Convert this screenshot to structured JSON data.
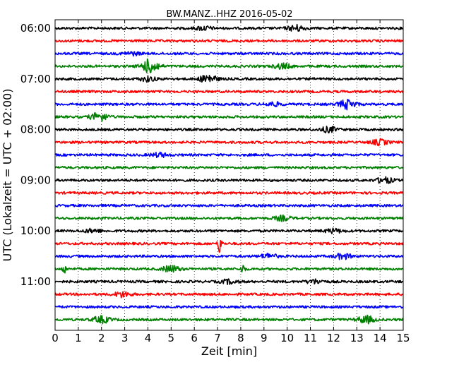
{
  "chart_data": {
    "type": "line",
    "title": "BW.MANZ..HHZ 2016-05-02",
    "xlabel": "Zeit  [min]",
    "ylabel": "UTC (Lokalzeit = UTC + 02:00)",
    "xlim": [
      0,
      15
    ],
    "x_ticks": [
      "0",
      "1",
      "2",
      "3",
      "4",
      "5",
      "6",
      "7",
      "8",
      "9",
      "10",
      "11",
      "12",
      "13",
      "14",
      "15"
    ],
    "y_tick_labels": [
      "06:00",
      "07:00",
      "08:00",
      "09:00",
      "10:00",
      "11:00"
    ],
    "grid": "vertical dotted",
    "trace_colors": [
      "#000000",
      "#ff0000",
      "#0000ff",
      "#008000"
    ],
    "traces": [
      {
        "start": "06:00",
        "color": "#000000",
        "events": [
          {
            "t": 6.4,
            "amp": 0.6
          },
          {
            "t": 10.4,
            "amp": 0.9
          }
        ]
      },
      {
        "start": "06:15",
        "color": "#ff0000",
        "events": []
      },
      {
        "start": "06:30",
        "color": "#0000ff",
        "events": [
          {
            "t": 3.3,
            "amp": 0.5
          }
        ]
      },
      {
        "start": "06:45",
        "color": "#008000",
        "events": [
          {
            "t": 4.1,
            "amp": 2.2
          },
          {
            "t": 9.8,
            "amp": 0.8
          }
        ]
      },
      {
        "start": "07:00",
        "color": "#000000",
        "events": [
          {
            "t": 4.0,
            "amp": 0.7
          },
          {
            "t": 6.6,
            "amp": 1.3
          }
        ]
      },
      {
        "start": "07:15",
        "color": "#ff0000",
        "events": []
      },
      {
        "start": "07:30",
        "color": "#0000ff",
        "events": [
          {
            "t": 9.4,
            "amp": 0.6
          },
          {
            "t": 12.6,
            "amp": 1.4
          }
        ]
      },
      {
        "start": "07:45",
        "color": "#008000",
        "events": [
          {
            "t": 1.9,
            "amp": 1.3
          }
        ]
      },
      {
        "start": "08:00",
        "color": "#000000",
        "events": [
          {
            "t": 11.8,
            "amp": 0.8
          }
        ]
      },
      {
        "start": "08:15",
        "color": "#ff0000",
        "events": [
          {
            "t": 14.0,
            "amp": 0.8
          }
        ]
      },
      {
        "start": "08:30",
        "color": "#0000ff",
        "events": [
          {
            "t": 4.5,
            "amp": 0.6
          }
        ]
      },
      {
        "start": "08:45",
        "color": "#008000",
        "events": []
      },
      {
        "start": "09:00",
        "color": "#000000",
        "events": [
          {
            "t": 14.2,
            "amp": 0.9
          }
        ]
      },
      {
        "start": "09:15",
        "color": "#ff0000",
        "events": []
      },
      {
        "start": "09:30",
        "color": "#0000ff",
        "events": []
      },
      {
        "start": "09:45",
        "color": "#008000",
        "events": [
          {
            "t": 9.8,
            "amp": 0.7
          }
        ]
      },
      {
        "start": "10:00",
        "color": "#000000",
        "events": [
          {
            "t": 1.6,
            "amp": 0.5
          },
          {
            "t": 12.0,
            "amp": 0.6
          }
        ]
      },
      {
        "start": "10:15",
        "color": "#ff0000",
        "events": [
          {
            "t": 7.1,
            "amp": 3.2,
            "spike": true
          }
        ]
      },
      {
        "start": "10:30",
        "color": "#0000ff",
        "events": [
          {
            "t": 9.2,
            "amp": 0.7
          },
          {
            "t": 12.4,
            "amp": 0.8
          }
        ]
      },
      {
        "start": "10:45",
        "color": "#008000",
        "events": [
          {
            "t": 0.4,
            "amp": 1.6,
            "spike": true
          },
          {
            "t": 5.0,
            "amp": 1.0
          },
          {
            "t": 8.1,
            "amp": 1.4,
            "spike": true
          }
        ]
      },
      {
        "start": "11:00",
        "color": "#000000",
        "events": [
          {
            "t": 7.5,
            "amp": 0.6
          },
          {
            "t": 11.2,
            "amp": 0.6
          }
        ]
      },
      {
        "start": "11:15",
        "color": "#ff0000",
        "events": [
          {
            "t": 2.9,
            "amp": 0.8
          }
        ]
      },
      {
        "start": "11:30",
        "color": "#0000ff",
        "events": []
      },
      {
        "start": "11:45",
        "color": "#008000",
        "events": [
          {
            "t": 2.0,
            "amp": 1.0
          },
          {
            "t": 13.4,
            "amp": 1.1
          }
        ]
      }
    ]
  }
}
